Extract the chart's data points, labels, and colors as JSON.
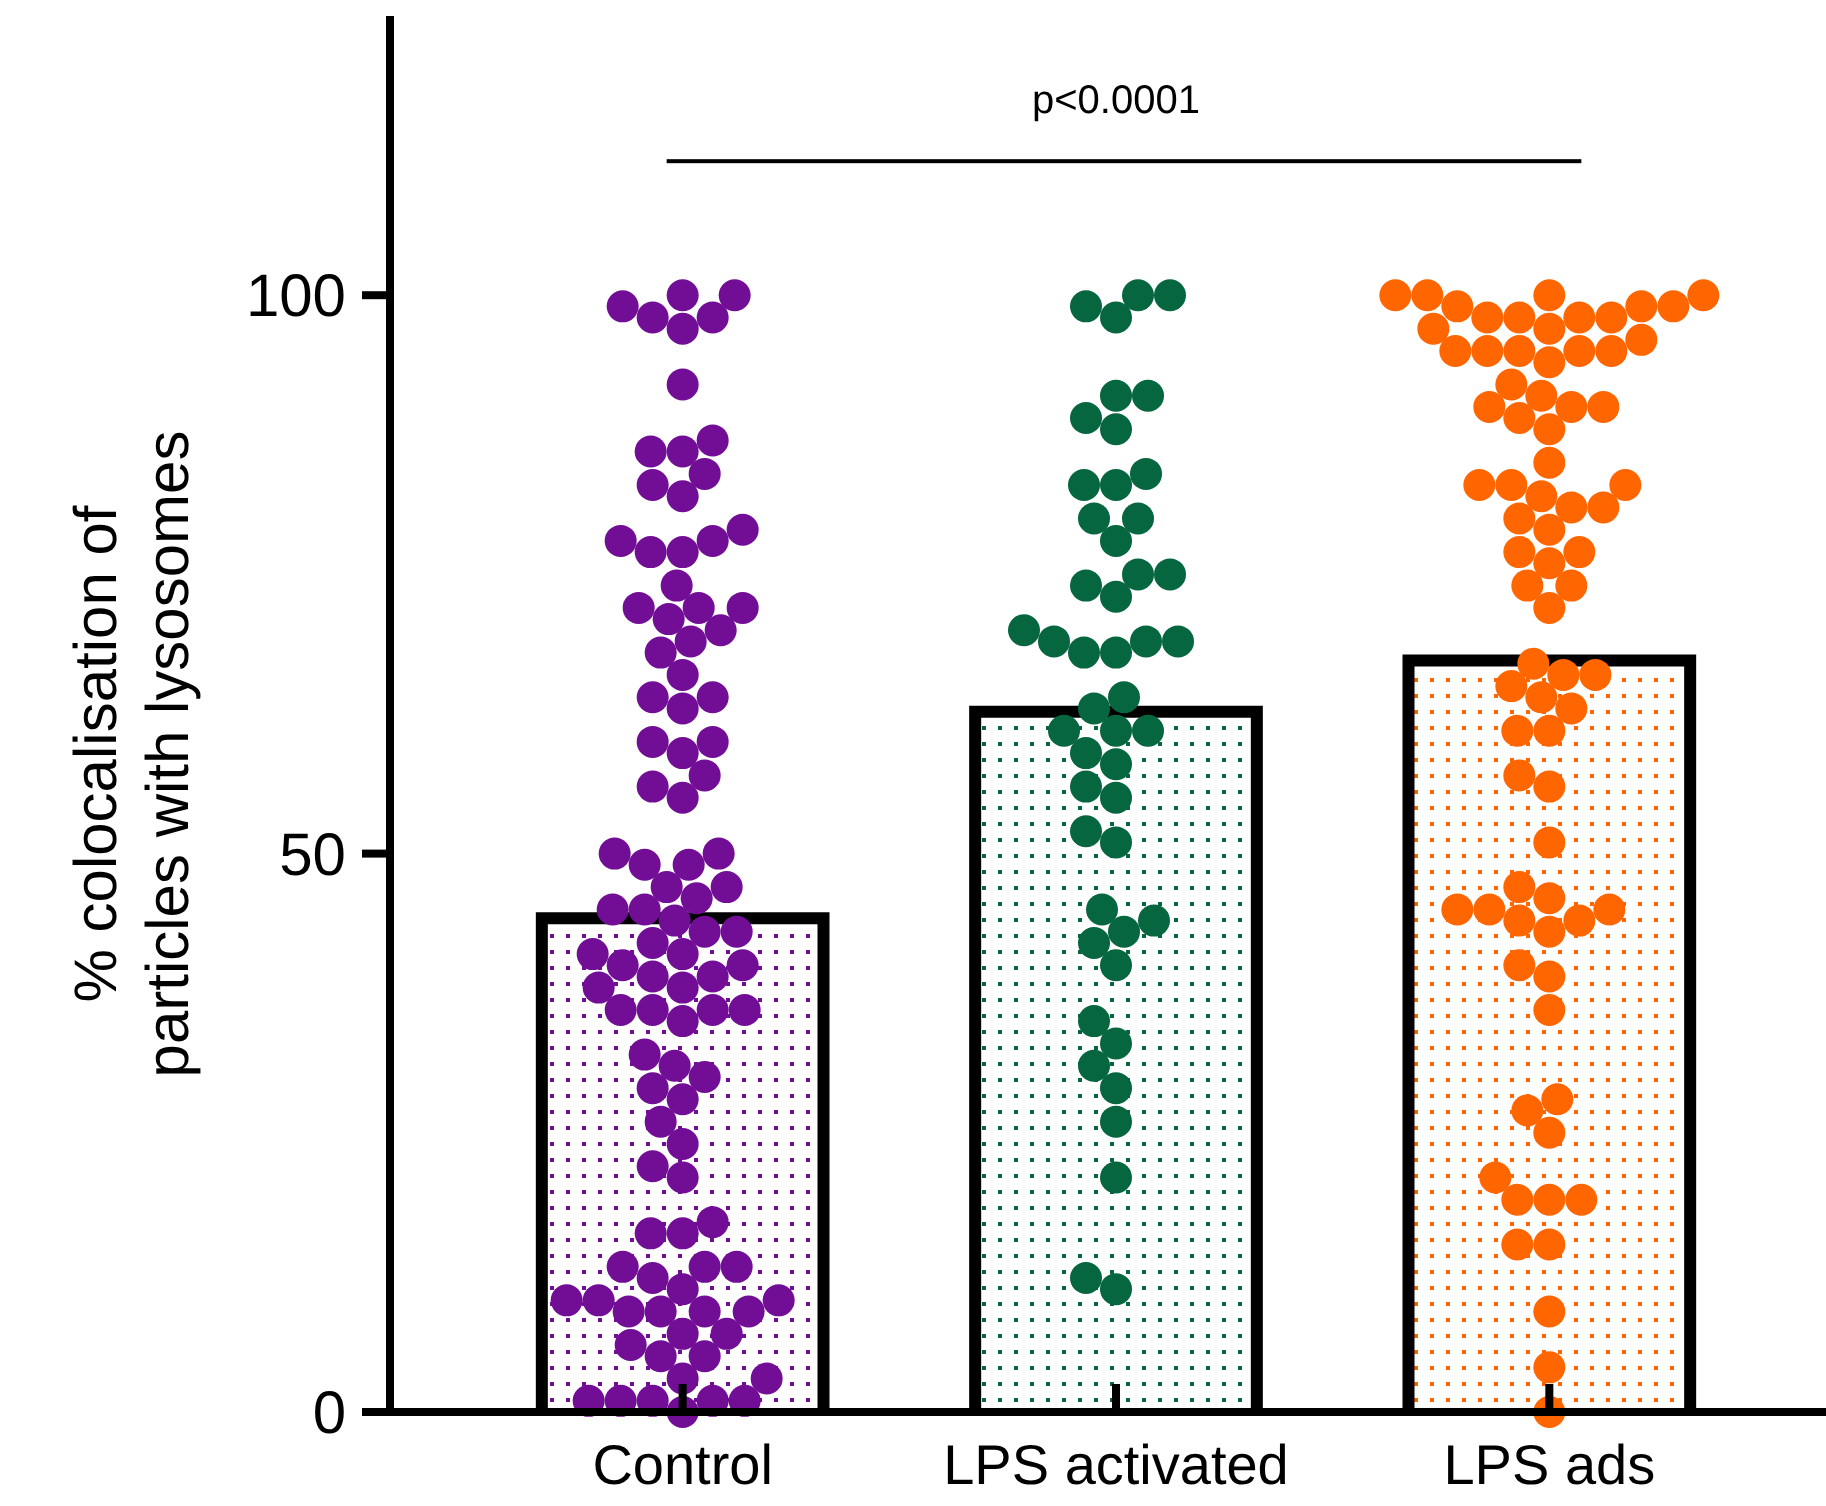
{
  "chart_data": {
    "type": "bar",
    "categories": [
      "Control",
      "LPS activated",
      "LPS ads"
    ],
    "ylabel": "% colocalisation of\nparticles with lysosomes",
    "ylim": [
      0,
      125
    ],
    "yticks": [
      0,
      50,
      100
    ],
    "grid": false,
    "annotations": [
      "p<0.0001"
    ],
    "series": [
      {
        "values": [
          44.2,
          62.7,
          67.3
        ],
        "colors": [
          "#720e96",
          "#056640",
          "#ff6600"
        ]
      },
      {
        "type": "scatter",
        "color": "#720e96",
        "x": [
          "Control",
          "Control",
          "Control",
          "Control",
          "Control",
          "Control",
          "Control",
          "Control",
          "Control",
          "Control",
          "Control",
          "Control",
          "Control",
          "Control",
          "Control",
          "Control",
          "Control",
          "Control",
          "Control",
          "Control",
          "Control",
          "Control",
          "Control",
          "Control",
          "Control",
          "Control",
          "Control",
          "Control",
          "Control",
          "Control",
          "Control",
          "Control",
          "Control",
          "Control",
          "Control",
          "Control",
          "Control",
          "Control",
          "Control",
          "Control",
          "Control",
          "Control",
          "Control",
          "Control",
          "Control",
          "Control",
          "Control",
          "Control",
          "Control",
          "Control",
          "Control",
          "Control",
          "Control",
          "Control",
          "Control",
          "Control",
          "Control",
          "Control",
          "Control",
          "Control",
          "Control",
          "Control",
          "Control",
          "Control",
          "Control",
          "Control",
          "Control",
          "Control",
          "Control",
          "Control",
          "Control",
          "Control",
          "Control",
          "Control",
          "Control",
          "Control",
          "Control",
          "Control",
          "Control",
          "Control",
          "Control",
          "Control",
          "Control",
          "Control",
          "Control",
          "Control",
          "Control",
          "Control",
          "Control",
          "Control",
          "Control",
          "Control",
          "Control",
          "Control",
          "Control",
          "Control",
          "Control",
          "Control",
          "Control"
        ],
        "values": [
          100,
          98,
          98,
          100,
          97,
          99,
          92,
          87,
          86,
          86,
          83,
          84,
          82,
          79,
          77,
          77,
          78,
          78,
          72,
          74,
          70,
          72,
          72,
          71,
          68,
          66,
          69,
          64,
          63,
          64,
          60,
          59,
          57,
          60,
          55,
          56,
          50,
          50,
          49,
          49,
          47,
          47,
          45,
          46,
          45,
          43,
          44,
          43,
          42,
          41,
          40,
          40,
          41,
          39,
          38,
          39,
          38,
          36,
          36,
          35,
          36,
          36,
          30,
          32,
          31,
          29,
          28,
          26,
          24,
          22,
          21,
          17,
          16,
          16,
          13,
          13,
          13,
          12,
          11,
          10,
          9,
          9,
          10,
          9,
          10,
          9,
          7,
          6,
          7,
          5,
          5,
          3,
          1,
          3,
          1,
          1,
          0,
          1,
          1
        ]
      },
      {
        "type": "scatter",
        "color": "#056640",
        "x": [
          "LPS activated",
          "LPS activated",
          "LPS activated",
          "LPS activated",
          "LPS activated",
          "LPS activated",
          "LPS activated",
          "LPS activated",
          "LPS activated",
          "LPS activated",
          "LPS activated",
          "LPS activated",
          "LPS activated",
          "LPS activated",
          "LPS activated",
          "LPS activated",
          "LPS activated",
          "LPS activated",
          "LPS activated",
          "LPS activated",
          "LPS activated",
          "LPS activated",
          "LPS activated",
          "LPS activated",
          "LPS activated",
          "LPS activated",
          "LPS activated",
          "LPS activated",
          "LPS activated",
          "LPS activated",
          "LPS activated",
          "LPS activated",
          "LPS activated",
          "LPS activated",
          "LPS activated",
          "LPS activated",
          "LPS activated",
          "LPS activated",
          "LPS activated",
          "LPS activated",
          "LPS activated",
          "LPS activated",
          "LPS activated",
          "LPS activated",
          "LPS activated",
          "LPS activated",
          "LPS activated",
          "LPS activated"
        ],
        "values": [
          100,
          100,
          98,
          99,
          91,
          91,
          89,
          88,
          84,
          83,
          83,
          80,
          80,
          78,
          75,
          74,
          75,
          73,
          70,
          68,
          69,
          69,
          69,
          68,
          64,
          63,
          61,
          61,
          61,
          59,
          58,
          56,
          55,
          52,
          51,
          43,
          42,
          44,
          45,
          40,
          35,
          33,
          31,
          29,
          26,
          21,
          11,
          12
        ]
      },
      {
        "type": "scatter",
        "color": "#ff6600",
        "x": [
          "LPS ads",
          "LPS ads",
          "LPS ads",
          "LPS ads",
          "LPS ads",
          "LPS ads",
          "LPS ads",
          "LPS ads",
          "LPS ads",
          "LPS ads",
          "LPS ads",
          "LPS ads",
          "LPS ads",
          "LPS ads",
          "LPS ads",
          "LPS ads",
          "LPS ads",
          "LPS ads",
          "LPS ads",
          "LPS ads",
          "LPS ads",
          "LPS ads",
          "LPS ads",
          "LPS ads",
          "LPS ads",
          "LPS ads",
          "LPS ads",
          "LPS ads",
          "LPS ads",
          "LPS ads",
          "LPS ads",
          "LPS ads",
          "LPS ads",
          "LPS ads",
          "LPS ads",
          "LPS ads",
          "LPS ads",
          "LPS ads",
          "LPS ads",
          "LPS ads",
          "LPS ads",
          "LPS ads",
          "LPS ads",
          "LPS ads",
          "LPS ads",
          "LPS ads",
          "LPS ads",
          "LPS ads",
          "LPS ads",
          "LPS ads",
          "LPS ads",
          "LPS ads",
          "LPS ads",
          "LPS ads",
          "LPS ads",
          "LPS ads",
          "LPS ads",
          "LPS ads",
          "LPS ads",
          "LPS ads",
          "LPS ads",
          "LPS ads",
          "LPS ads",
          "LPS ads",
          "LPS ads",
          "LPS ads",
          "LPS ads",
          "LPS ads",
          "LPS ads",
          "LPS ads",
          "LPS ads",
          "LPS ads",
          "LPS ads",
          "LPS ads",
          "LPS ads",
          "LPS ads"
        ],
        "values": [
          100,
          100,
          100,
          100,
          99,
          99,
          99,
          98,
          98,
          98,
          98,
          97,
          97,
          96,
          95,
          95,
          95,
          95,
          95,
          94,
          92,
          90,
          89,
          90,
          90,
          91,
          88,
          85,
          83,
          83,
          82,
          83,
          81,
          81,
          80,
          79,
          77,
          76,
          77,
          74,
          74,
          72,
          67,
          66,
          66,
          65,
          64,
          63,
          61,
          61,
          57,
          56,
          51,
          47,
          45,
          45,
          46,
          45,
          44,
          44,
          43,
          40,
          39,
          36,
          28,
          27,
          25,
          21,
          19,
          19,
          19,
          15,
          15,
          9,
          4,
          0
        ]
      }
    ]
  }
}
